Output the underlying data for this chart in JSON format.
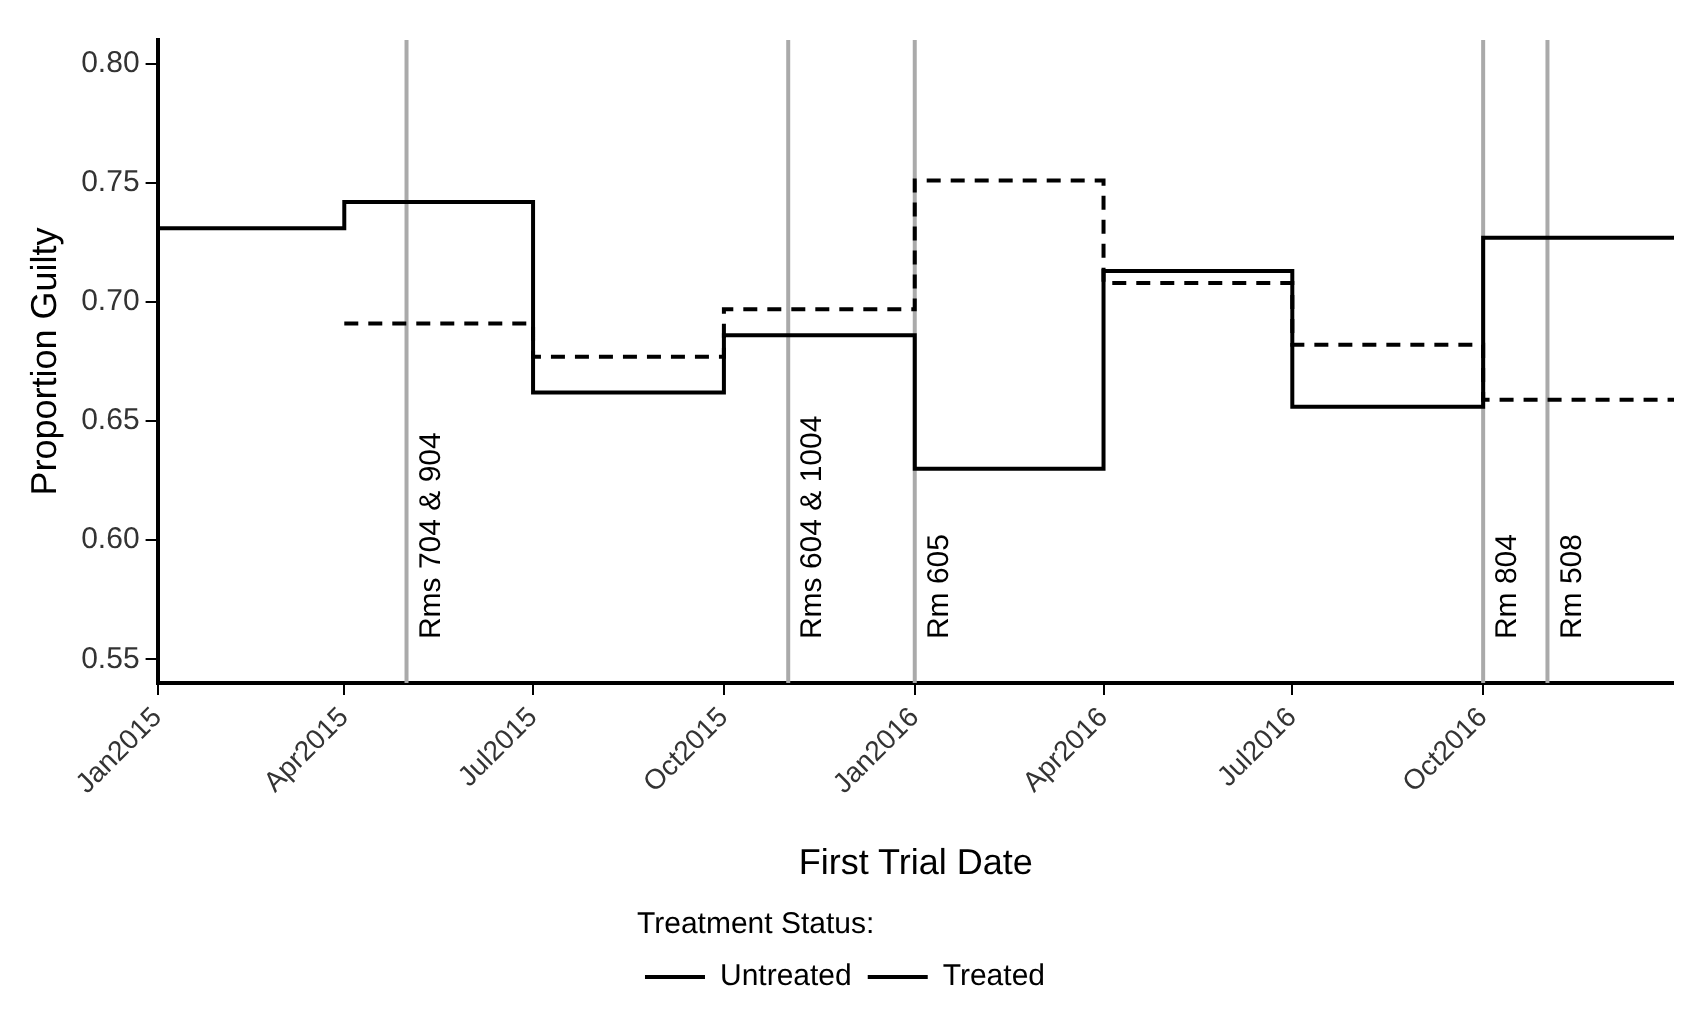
{
  "chart_data": {
    "type": "step",
    "xlabel": "First Trial Date",
    "ylabel": "Proportion Guilty",
    "legend_title": "Treatment Status:",
    "x": [
      "2015-01",
      "2015-04",
      "2015-07",
      "2015-10",
      "2016-01",
      "2016-04",
      "2016-07",
      "2016-10",
      "2017-01"
    ],
    "series": [
      {
        "name": "Untreated",
        "color": "#000000",
        "line_style": "solid",
        "values": [
          0.731,
          0.742,
          0.662,
          0.686,
          0.63,
          0.713,
          0.656,
          0.727,
          0.727
        ]
      },
      {
        "name": "Treated",
        "color": "#000000",
        "line_style": "dashed",
        "values": [
          null,
          0.691,
          0.677,
          0.697,
          0.751,
          0.708,
          0.682,
          0.659,
          0.659
        ]
      }
    ],
    "xlim": [
      "2015-01",
      "2017-01"
    ],
    "xticks": [
      {
        "value": "2015-01",
        "label": "Jan2015"
      },
      {
        "value": "2015-04",
        "label": "Apr2015"
      },
      {
        "value": "2015-07",
        "label": "Jul2015"
      },
      {
        "value": "2015-10",
        "label": "Oct2015"
      },
      {
        "value": "2016-01",
        "label": "Jan2016"
      },
      {
        "value": "2016-04",
        "label": "Apr2016"
      },
      {
        "value": "2016-07",
        "label": "Jul2016"
      },
      {
        "value": "2016-10",
        "label": "Oct2016"
      }
    ],
    "ylim": [
      0.54,
      0.81
    ],
    "yticks": [
      {
        "value": 0.55,
        "label": "0.55"
      },
      {
        "value": 0.6,
        "label": "0.60"
      },
      {
        "value": 0.65,
        "label": "0.65"
      },
      {
        "value": 0.7,
        "label": "0.70"
      },
      {
        "value": 0.75,
        "label": "0.75"
      },
      {
        "value": 0.8,
        "label": "0.80"
      }
    ],
    "ref_lines": [
      {
        "axis": "x",
        "value": "2015-05-01",
        "label": "Rms 704 & 904",
        "color": "#aaaaaa"
      },
      {
        "axis": "x",
        "value": "2015-11-01",
        "label": "Rms 604 & 1004",
        "color": "#aaaaaa"
      },
      {
        "axis": "x",
        "value": "2016-01-01",
        "label": "Rm 605",
        "color": "#aaaaaa"
      },
      {
        "axis": "x",
        "value": "2016-10-01",
        "label": "Rm 804",
        "color": "#aaaaaa"
      },
      {
        "axis": "x",
        "value": "2016-11-01",
        "label": "Rm 508",
        "color": "#aaaaaa"
      }
    ],
    "grid": false,
    "legend": "bottom",
    "marker": "none"
  }
}
